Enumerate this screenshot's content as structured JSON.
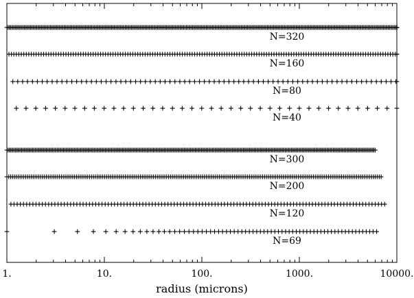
{
  "chart_data": {
    "type": "scatter",
    "x_scale": "log",
    "xlim": [
      1,
      10000
    ],
    "xlabel": "radius (microns)",
    "x_tick_labels": [
      "1.",
      "10.",
      "100.",
      "1000.",
      "10000."
    ],
    "x_tick_values": [
      1,
      10,
      100,
      1000,
      10000
    ],
    "series": [
      {
        "name": "N=320",
        "n": 320,
        "r_min": 1.0,
        "r_max": 12000,
        "spacing": "log"
      },
      {
        "name": "N=160",
        "n": 160,
        "r_min": 1.05,
        "r_max": 11500,
        "spacing": "log"
      },
      {
        "name": "N=80",
        "n": 80,
        "r_min": 1.15,
        "r_max": 11000,
        "spacing": "log"
      },
      {
        "name": "N=40",
        "n": 40,
        "r_min": 1.25,
        "r_max": 10000,
        "spacing": "log"
      },
      {
        "name": "N=300",
        "n": 300,
        "r_min": 1.0,
        "r_max": 6000,
        "spacing": "log"
      },
      {
        "name": "N=200",
        "n": 200,
        "r_min": 1.0,
        "r_max": 6900,
        "spacing": "log"
      },
      {
        "name": "N=120",
        "n": 120,
        "r_min": 1.1,
        "r_max": 7500,
        "spacing": "log"
      },
      {
        "name": "N=69",
        "n": 69,
        "r_min": 1.0,
        "r_max": 6200,
        "spacing": "geometric_increment"
      }
    ]
  }
}
